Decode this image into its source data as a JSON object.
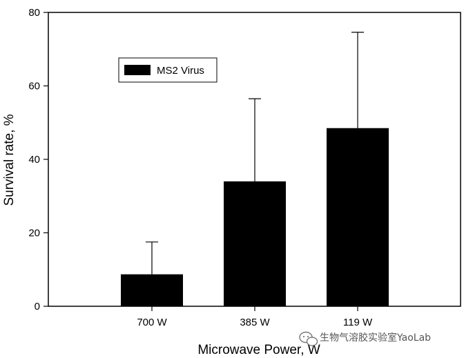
{
  "chart_data": {
    "type": "bar",
    "title": "",
    "xlabel": "Microwave Power, W",
    "ylabel": "Survival rate, %",
    "ylim": [
      0,
      80
    ],
    "yticks": [
      0,
      20,
      40,
      60,
      80
    ],
    "grid": false,
    "legend_position": "top-left",
    "categories": [
      "700 W",
      "385 W",
      "119 W"
    ],
    "series": [
      {
        "name": "MS2 Virus",
        "values": [
          8.7,
          34.0,
          48.5
        ],
        "errors": [
          8.8,
          22.5,
          26.1
        ],
        "color": "#000000"
      }
    ]
  },
  "watermark": {
    "icon": "wechat-icon",
    "text": "生物气溶胶实验室YaoLab"
  }
}
